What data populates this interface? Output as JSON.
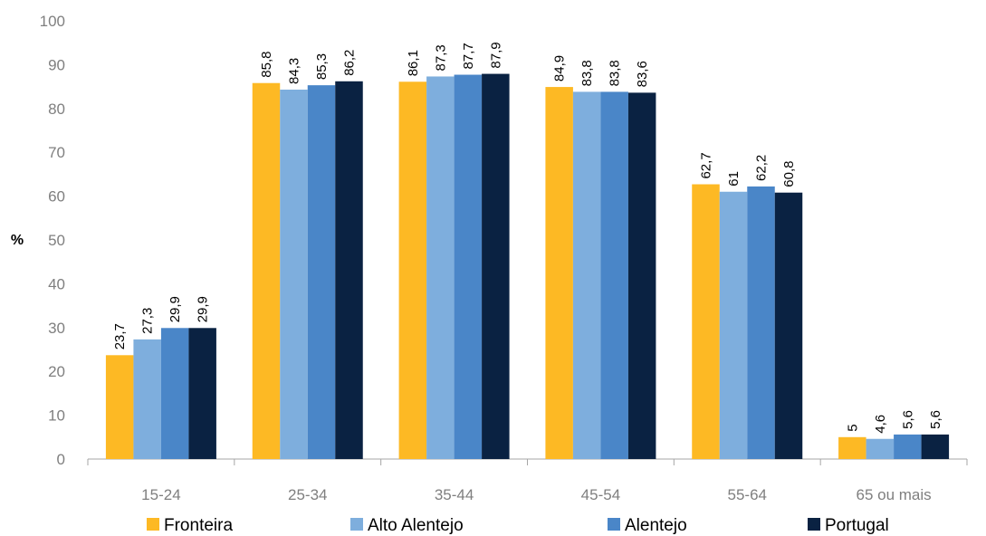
{
  "chart_data": {
    "type": "bar",
    "title": "",
    "xlabel": "",
    "ylabel": "%",
    "ylim": [
      0,
      100
    ],
    "yticks": [
      0,
      10,
      20,
      30,
      40,
      50,
      60,
      70,
      80,
      90,
      100
    ],
    "grid": false,
    "legend_position": "bottom",
    "categories": [
      "15-24",
      "25-34",
      "35-44",
      "45-54",
      "55-64",
      "65 ou mais"
    ],
    "series": [
      {
        "name": "Fronteira",
        "color": "#FDB924",
        "values": [
          23.7,
          85.8,
          86.1,
          84.9,
          62.7,
          5
        ],
        "labels": [
          "23,7",
          "85,8",
          "86,1",
          "84,9",
          "62,7",
          "5"
        ]
      },
      {
        "name": "Alto Alentejo",
        "color": "#7EAEDD",
        "values": [
          27.3,
          84.3,
          87.3,
          83.8,
          61,
          4.6
        ],
        "labels": [
          "27,3",
          "84,3",
          "87,3",
          "83,8",
          "61",
          "4,6"
        ]
      },
      {
        "name": "Alentejo",
        "color": "#4A86C8",
        "values": [
          29.9,
          85.3,
          87.7,
          83.8,
          62.2,
          5.6
        ],
        "labels": [
          "29,9",
          "85,3",
          "87,7",
          "83,8",
          "62,2",
          "5,6"
        ]
      },
      {
        "name": "Portugal",
        "color": "#0A2242",
        "values": [
          29.9,
          86.2,
          87.9,
          83.6,
          60.8,
          5.6
        ],
        "labels": [
          "29,9",
          "86,2",
          "87,9",
          "83,6",
          "60,8",
          "5,6"
        ]
      }
    ]
  }
}
